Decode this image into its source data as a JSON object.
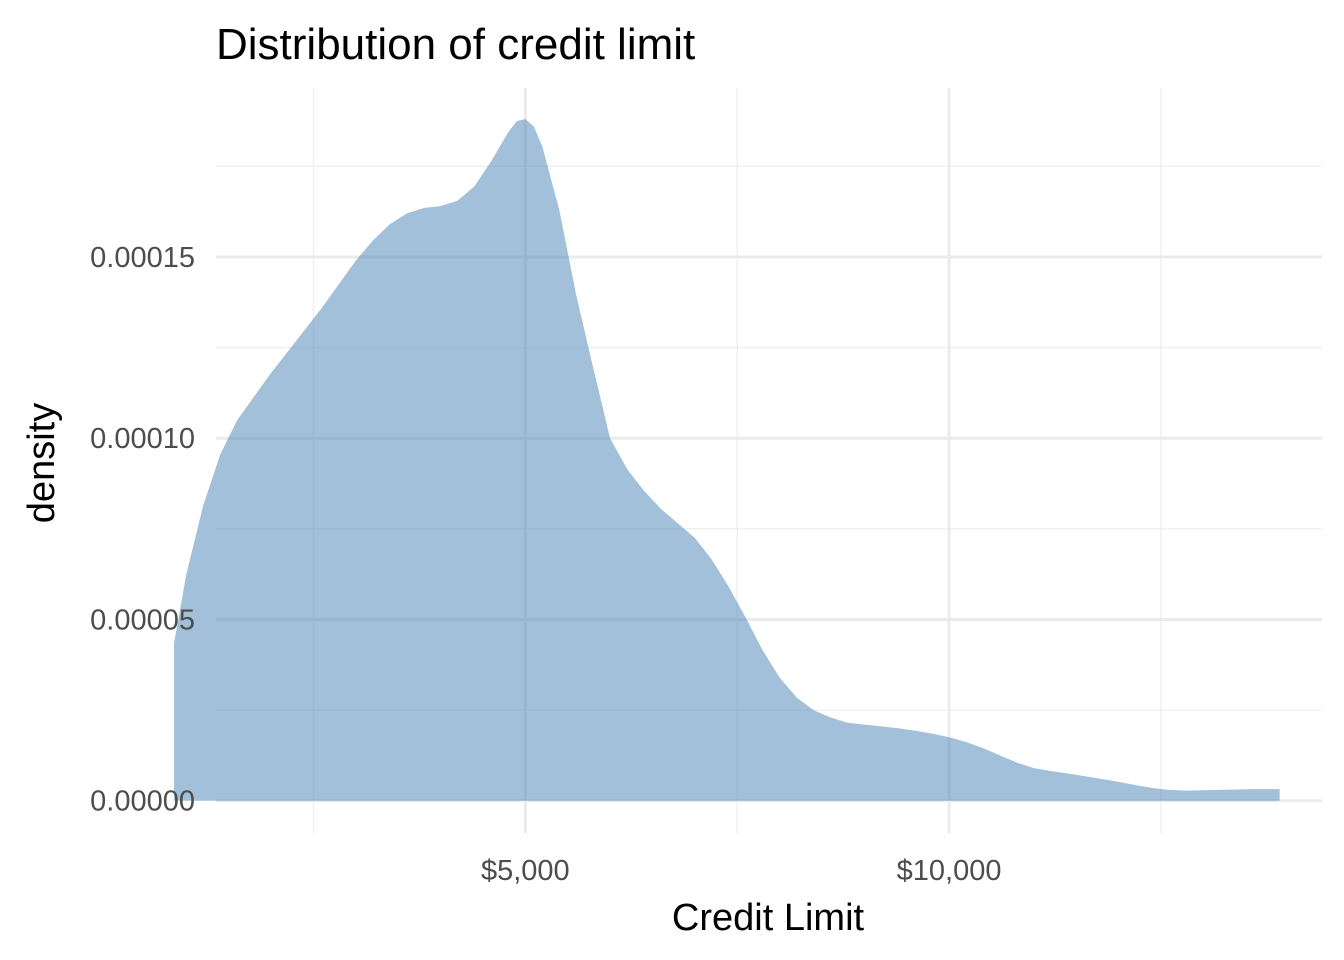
{
  "chart_data": {
    "type": "area",
    "title": "Distribution of credit limit",
    "xlabel": "Credit Limit",
    "ylabel": "density",
    "xlim": [
      1350,
      14400
    ],
    "ylim": [
      -8.9e-06,
      0.0001966
    ],
    "x_ticks": [
      5000,
      10000
    ],
    "x_tick_labels": [
      "$5,000",
      "$10,000"
    ],
    "x_minor_ticks": [
      2500,
      7500,
      12500
    ],
    "y_ticks": [
      0,
      5e-05,
      0.0001,
      0.00015
    ],
    "y_tick_labels": [
      "0.00000",
      "0.00005",
      "0.00010",
      "0.00015"
    ],
    "y_minor_ticks": [
      2.5e-05,
      7.5e-05,
      0.000125,
      0.000175
    ],
    "grid": true,
    "legend": "none",
    "fill_color": "#4682b4",
    "fill_opacity": 0.5,
    "series": [
      {
        "x": [
          855,
          1000,
          1200,
          1400,
          1600,
          1800,
          2000,
          2200,
          2400,
          2600,
          2800,
          3000,
          3200,
          3400,
          3600,
          3800,
          4000,
          4200,
          4400,
          4600,
          4800,
          4900,
          5000,
          5100,
          5200,
          5400,
          5600,
          5800,
          6000,
          6200,
          6400,
          6600,
          6800,
          7000,
          7200,
          7400,
          7600,
          7800,
          8000,
          8200,
          8400,
          8600,
          8800,
          9000,
          9200,
          9400,
          9600,
          9800,
          10000,
          10200,
          10400,
          10600,
          10800,
          11000,
          11200,
          11400,
          11600,
          11800,
          12000,
          12200,
          12400,
          12600,
          12800,
          13000,
          13200,
          13400,
          13600,
          13800,
          13900
        ],
        "y": [
          4.35e-05,
          6.25e-05,
          8.15e-05,
          9.55e-05,
          0.000105,
          0.0001115,
          0.000118,
          0.000124,
          0.00013,
          0.000136,
          0.0001425,
          0.000149,
          0.0001545,
          0.000159,
          0.000162,
          0.0001635,
          0.000164,
          0.0001655,
          0.0001695,
          0.0001765,
          0.0001845,
          0.0001875,
          0.000188,
          0.000186,
          0.0001805,
          0.000163,
          0.0001395,
          0.0001195,
          0.0001,
          9.15e-05,
          8.55e-05,
          8.05e-05,
          7.65e-05,
          7.25e-05,
          6.65e-05,
          5.9e-05,
          5.05e-05,
          4.15e-05,
          3.4e-05,
          2.85e-05,
          2.5e-05,
          2.3e-05,
          2.15e-05,
          2.1e-05,
          2.05e-05,
          2e-05,
          1.93e-05,
          1.85e-05,
          1.75e-05,
          1.62e-05,
          1.45e-05,
          1.25e-05,
          1.05e-05,
          9e-06,
          8.2e-06,
          7.5e-06,
          6.8e-06,
          6e-06,
          5.2e-06,
          4.3e-06,
          3.5e-06,
          3e-06,
          2.8e-06,
          2.9e-06,
          3e-06,
          3.1e-06,
          3.2e-06,
          3.2e-06,
          3.2e-06
        ]
      }
    ]
  }
}
